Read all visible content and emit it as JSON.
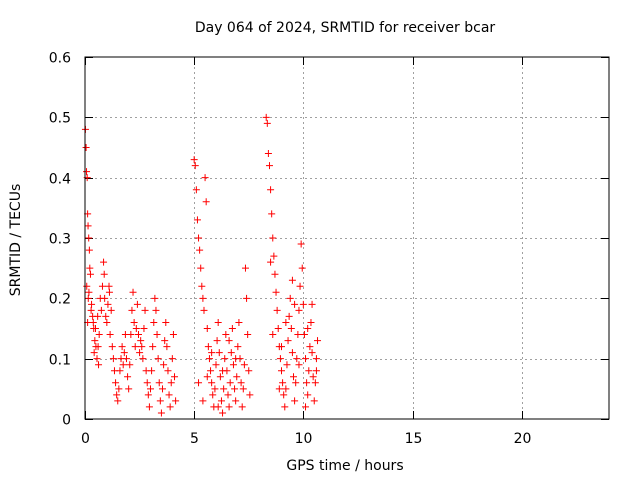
{
  "chart_data": {
    "type": "scatter",
    "title": "Day 064 of 2024, SRMTID for receiver bcar",
    "xlabel": "GPS time / hours",
    "ylabel": "SRMTID / TECUs",
    "xlim": [
      0,
      24
    ],
    "ylim": [
      0,
      0.6
    ],
    "xticks": [
      0,
      5,
      10,
      15,
      20
    ],
    "xtick_labels": [
      "0",
      "5",
      "10",
      "15",
      "20"
    ],
    "yticks": [
      0,
      0.1,
      0.2,
      0.3,
      0.4,
      0.5,
      0.6
    ],
    "ytick_labels": [
      "0",
      "0.1",
      "0.2",
      "0.3",
      "0.4",
      "0.5",
      "0.6"
    ],
    "grid": true,
    "marker": "+",
    "series": [
      {
        "name": "SRMTID",
        "color": "#ff0000",
        "points": [
          [
            0.02,
            0.48
          ],
          [
            0.05,
            0.45
          ],
          [
            0.07,
            0.41
          ],
          [
            0.1,
            0.4
          ],
          [
            0.12,
            0.34
          ],
          [
            0.14,
            0.32
          ],
          [
            0.17,
            0.3
          ],
          [
            0.2,
            0.28
          ],
          [
            0.22,
            0.25
          ],
          [
            0.25,
            0.24
          ],
          [
            0.08,
            0.22
          ],
          [
            0.15,
            0.2
          ],
          [
            0.3,
            0.19
          ],
          [
            0.35,
            0.17
          ],
          [
            0.4,
            0.15
          ],
          [
            0.45,
            0.13
          ],
          [
            0.5,
            0.12
          ],
          [
            0.55,
            0.1
          ],
          [
            0.6,
            0.12
          ],
          [
            0.65,
            0.14
          ],
          [
            0.18,
            0.21
          ],
          [
            0.28,
            0.18
          ],
          [
            0.38,
            0.16
          ],
          [
            0.48,
            0.15
          ],
          [
            0.58,
            0.17
          ],
          [
            0.7,
            0.2
          ],
          [
            0.75,
            0.18
          ],
          [
            0.8,
            0.22
          ],
          [
            0.85,
            0.26
          ],
          [
            0.9,
            0.2
          ],
          [
            0.95,
            0.17
          ],
          [
            1.0,
            0.16
          ],
          [
            1.05,
            0.19
          ],
          [
            1.1,
            0.22
          ],
          [
            1.15,
            0.14
          ],
          [
            1.2,
            0.18
          ],
          [
            1.25,
            0.12
          ],
          [
            1.3,
            0.1
          ],
          [
            1.35,
            0.08
          ],
          [
            1.4,
            0.06
          ],
          [
            1.45,
            0.04
          ],
          [
            1.5,
            0.03
          ],
          [
            1.55,
            0.05
          ],
          [
            1.6,
            0.08
          ],
          [
            1.65,
            0.1
          ],
          [
            1.7,
            0.12
          ],
          [
            1.75,
            0.09
          ],
          [
            1.8,
            0.11
          ],
          [
            1.85,
            0.14
          ],
          [
            1.9,
            0.1
          ],
          [
            1.95,
            0.07
          ],
          [
            2.0,
            0.05
          ],
          [
            2.05,
            0.09
          ],
          [
            2.1,
            0.14
          ],
          [
            2.15,
            0.18
          ],
          [
            2.2,
            0.21
          ],
          [
            2.25,
            0.16
          ],
          [
            2.3,
            0.12
          ],
          [
            2.35,
            0.15
          ],
          [
            2.4,
            0.19
          ],
          [
            2.45,
            0.14
          ],
          [
            2.5,
            0.11
          ],
          [
            2.55,
            0.13
          ],
          [
            2.6,
            0.12
          ],
          [
            2.65,
            0.1
          ],
          [
            2.7,
            0.15
          ],
          [
            2.75,
            0.18
          ],
          [
            2.8,
            0.08
          ],
          [
            2.85,
            0.06
          ],
          [
            2.9,
            0.04
          ],
          [
            2.95,
            0.02
          ],
          [
            3.0,
            0.05
          ],
          [
            3.05,
            0.08
          ],
          [
            3.1,
            0.12
          ],
          [
            3.15,
            0.16
          ],
          [
            3.2,
            0.2
          ],
          [
            3.25,
            0.18
          ],
          [
            3.3,
            0.14
          ],
          [
            3.35,
            0.1
          ],
          [
            3.4,
            0.06
          ],
          [
            3.45,
            0.03
          ],
          [
            3.5,
            0.01
          ],
          [
            3.55,
            0.05
          ],
          [
            3.6,
            0.09
          ],
          [
            3.65,
            0.13
          ],
          [
            3.7,
            0.16
          ],
          [
            3.75,
            0.12
          ],
          [
            3.8,
            0.08
          ],
          [
            3.85,
            0.04
          ],
          [
            3.9,
            0.02
          ],
          [
            3.95,
            0.06
          ],
          [
            4.0,
            0.1
          ],
          [
            4.05,
            0.14
          ],
          [
            4.1,
            0.07
          ],
          [
            4.15,
            0.03
          ],
          [
            0.12,
            0.16
          ],
          [
            0.42,
            0.11
          ],
          [
            0.62,
            0.09
          ],
          [
            0.88,
            0.24
          ],
          [
            1.12,
            0.21
          ],
          [
            5.0,
            0.43
          ],
          [
            5.05,
            0.42
          ],
          [
            5.1,
            0.38
          ],
          [
            5.15,
            0.33
          ],
          [
            5.2,
            0.3
          ],
          [
            5.25,
            0.28
          ],
          [
            5.3,
            0.25
          ],
          [
            5.35,
            0.22
          ],
          [
            5.4,
            0.2
          ],
          [
            5.45,
            0.18
          ],
          [
            5.5,
            0.4
          ],
          [
            5.55,
            0.36
          ],
          [
            5.6,
            0.15
          ],
          [
            5.65,
            0.12
          ],
          [
            5.7,
            0.1
          ],
          [
            5.75,
            0.08
          ],
          [
            5.8,
            0.06
          ],
          [
            5.85,
            0.04
          ],
          [
            5.9,
            0.02
          ],
          [
            5.95,
            0.05
          ],
          [
            6.0,
            0.09
          ],
          [
            6.05,
            0.13
          ],
          [
            6.1,
            0.16
          ],
          [
            6.15,
            0.11
          ],
          [
            6.2,
            0.07
          ],
          [
            6.25,
            0.03
          ],
          [
            6.3,
            0.01
          ],
          [
            6.35,
            0.05
          ],
          [
            6.4,
            0.1
          ],
          [
            6.45,
            0.14
          ],
          [
            6.5,
            0.08
          ],
          [
            6.55,
            0.04
          ],
          [
            6.6,
            0.02
          ],
          [
            6.65,
            0.06
          ],
          [
            6.7,
            0.11
          ],
          [
            6.75,
            0.15
          ],
          [
            6.8,
            0.09
          ],
          [
            6.85,
            0.05
          ],
          [
            6.9,
            0.03
          ],
          [
            6.95,
            0.07
          ],
          [
            7.0,
            0.12
          ],
          [
            7.05,
            0.16
          ],
          [
            7.1,
            0.1
          ],
          [
            7.15,
            0.06
          ],
          [
            7.2,
            0.02
          ],
          [
            7.25,
            0.05
          ],
          [
            7.3,
            0.09
          ],
          [
            7.35,
            0.25
          ],
          [
            7.4,
            0.2
          ],
          [
            7.45,
            0.14
          ],
          [
            7.5,
            0.08
          ],
          [
            7.55,
            0.04
          ],
          [
            5.2,
            0.06
          ],
          [
            5.4,
            0.03
          ],
          [
            5.6,
            0.07
          ],
          [
            5.8,
            0.11
          ],
          [
            6.1,
            0.02
          ],
          [
            6.3,
            0.08
          ],
          [
            6.6,
            0.13
          ],
          [
            6.9,
            0.1
          ],
          [
            8.3,
            0.5
          ],
          [
            8.35,
            0.49
          ],
          [
            8.4,
            0.44
          ],
          [
            8.45,
            0.42
          ],
          [
            8.5,
            0.38
          ],
          [
            8.55,
            0.34
          ],
          [
            8.6,
            0.3
          ],
          [
            8.65,
            0.27
          ],
          [
            8.7,
            0.24
          ],
          [
            8.75,
            0.21
          ],
          [
            8.8,
            0.18
          ],
          [
            8.85,
            0.15
          ],
          [
            8.9,
            0.12
          ],
          [
            8.95,
            0.1
          ],
          [
            9.0,
            0.08
          ],
          [
            9.05,
            0.06
          ],
          [
            9.1,
            0.04
          ],
          [
            9.15,
            0.02
          ],
          [
            9.2,
            0.05
          ],
          [
            9.25,
            0.09
          ],
          [
            9.3,
            0.13
          ],
          [
            9.35,
            0.17
          ],
          [
            9.4,
            0.2
          ],
          [
            9.45,
            0.15
          ],
          [
            9.5,
            0.11
          ],
          [
            9.55,
            0.07
          ],
          [
            9.6,
            0.03
          ],
          [
            9.65,
            0.06
          ],
          [
            9.7,
            0.1
          ],
          [
            9.75,
            0.14
          ],
          [
            9.8,
            0.18
          ],
          [
            9.85,
            0.22
          ],
          [
            9.9,
            0.29
          ],
          [
            9.95,
            0.25
          ],
          [
            10.0,
            0.19
          ],
          [
            10.05,
            0.14
          ],
          [
            10.1,
            0.1
          ],
          [
            10.15,
            0.06
          ],
          [
            10.2,
            0.04
          ],
          [
            10.25,
            0.08
          ],
          [
            10.3,
            0.12
          ],
          [
            10.35,
            0.16
          ],
          [
            10.4,
            0.11
          ],
          [
            10.45,
            0.07
          ],
          [
            10.5,
            0.03
          ],
          [
            10.55,
            0.06
          ],
          [
            10.6,
            0.1
          ],
          [
            10.65,
            0.13
          ],
          [
            8.6,
            0.14
          ],
          [
            8.9,
            0.05
          ],
          [
            9.2,
            0.16
          ],
          [
            9.5,
            0.23
          ],
          [
            9.8,
            0.09
          ],
          [
            10.1,
            0.02
          ],
          [
            10.4,
            0.19
          ],
          [
            10.6,
            0.08
          ],
          [
            8.5,
            0.26
          ],
          [
            9.0,
            0.12
          ],
          [
            9.6,
            0.19
          ],
          [
            10.2,
            0.15
          ]
        ]
      }
    ]
  }
}
